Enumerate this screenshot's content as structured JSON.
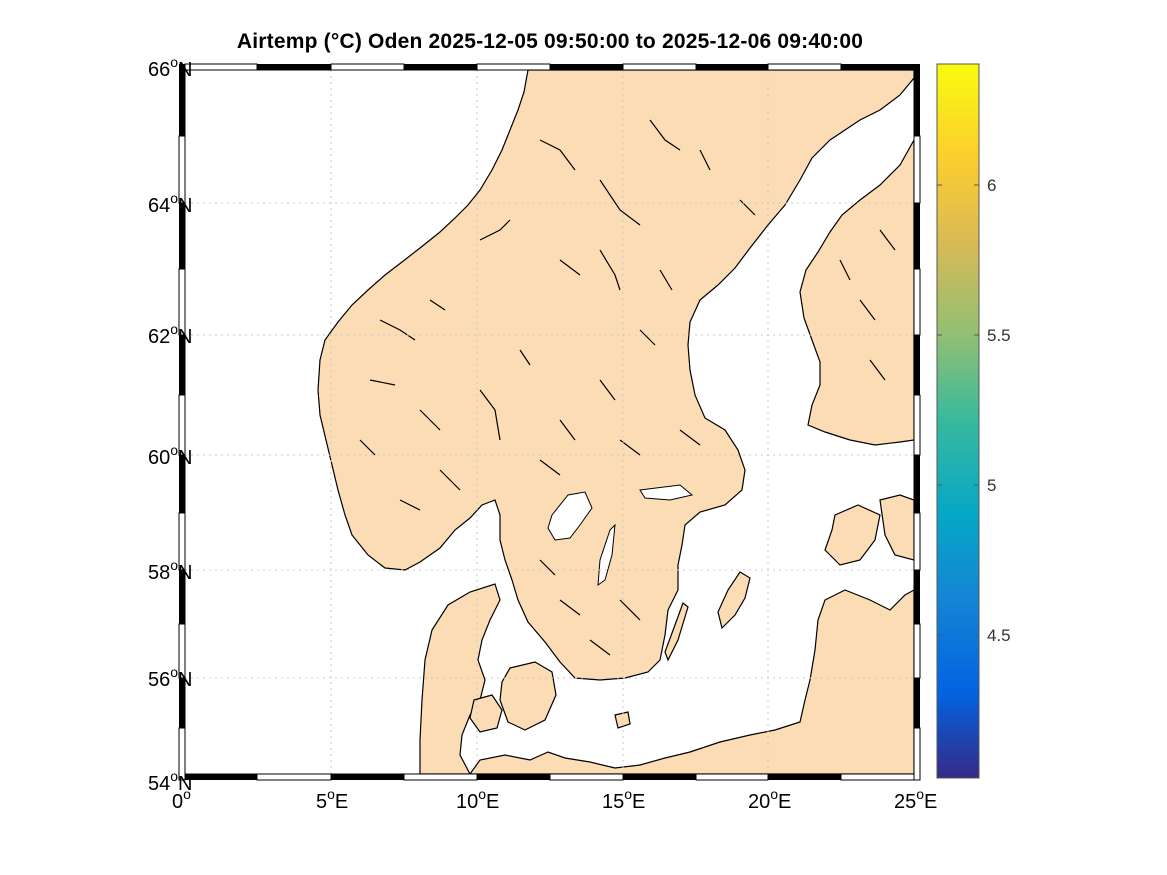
{
  "title": "Airtemp (°C)  Oden 2025-12-05 09:50:00  to  2025-12-06 09:40:00",
  "map": {
    "lon_range": [
      0,
      25
    ],
    "lat_range": [
      54,
      66
    ],
    "lat_ticks": [
      {
        "deg": "66",
        "hemi": "N"
      },
      {
        "deg": "64",
        "hemi": "N"
      },
      {
        "deg": "62",
        "hemi": "N"
      },
      {
        "deg": "60",
        "hemi": "N"
      },
      {
        "deg": "58",
        "hemi": "N"
      },
      {
        "deg": "56",
        "hemi": "N"
      },
      {
        "deg": "54",
        "hemi": "N"
      }
    ],
    "lon_ticks": [
      {
        "deg": "0",
        "hemi": ""
      },
      {
        "deg": "5",
        "hemi": "E"
      },
      {
        "deg": "10",
        "hemi": "E"
      },
      {
        "deg": "15",
        "hemi": "E"
      },
      {
        "deg": "20",
        "hemi": "E"
      },
      {
        "deg": "25",
        "hemi": "E"
      }
    ],
    "land_color": "#fcdcb4",
    "sea_color": "#ffffff",
    "grid": true
  },
  "colorbar": {
    "range": [
      4.0,
      6.4
    ],
    "ticks": [
      "6",
      "5.5",
      "5",
      "4.5"
    ],
    "colormap": "parula"
  }
}
